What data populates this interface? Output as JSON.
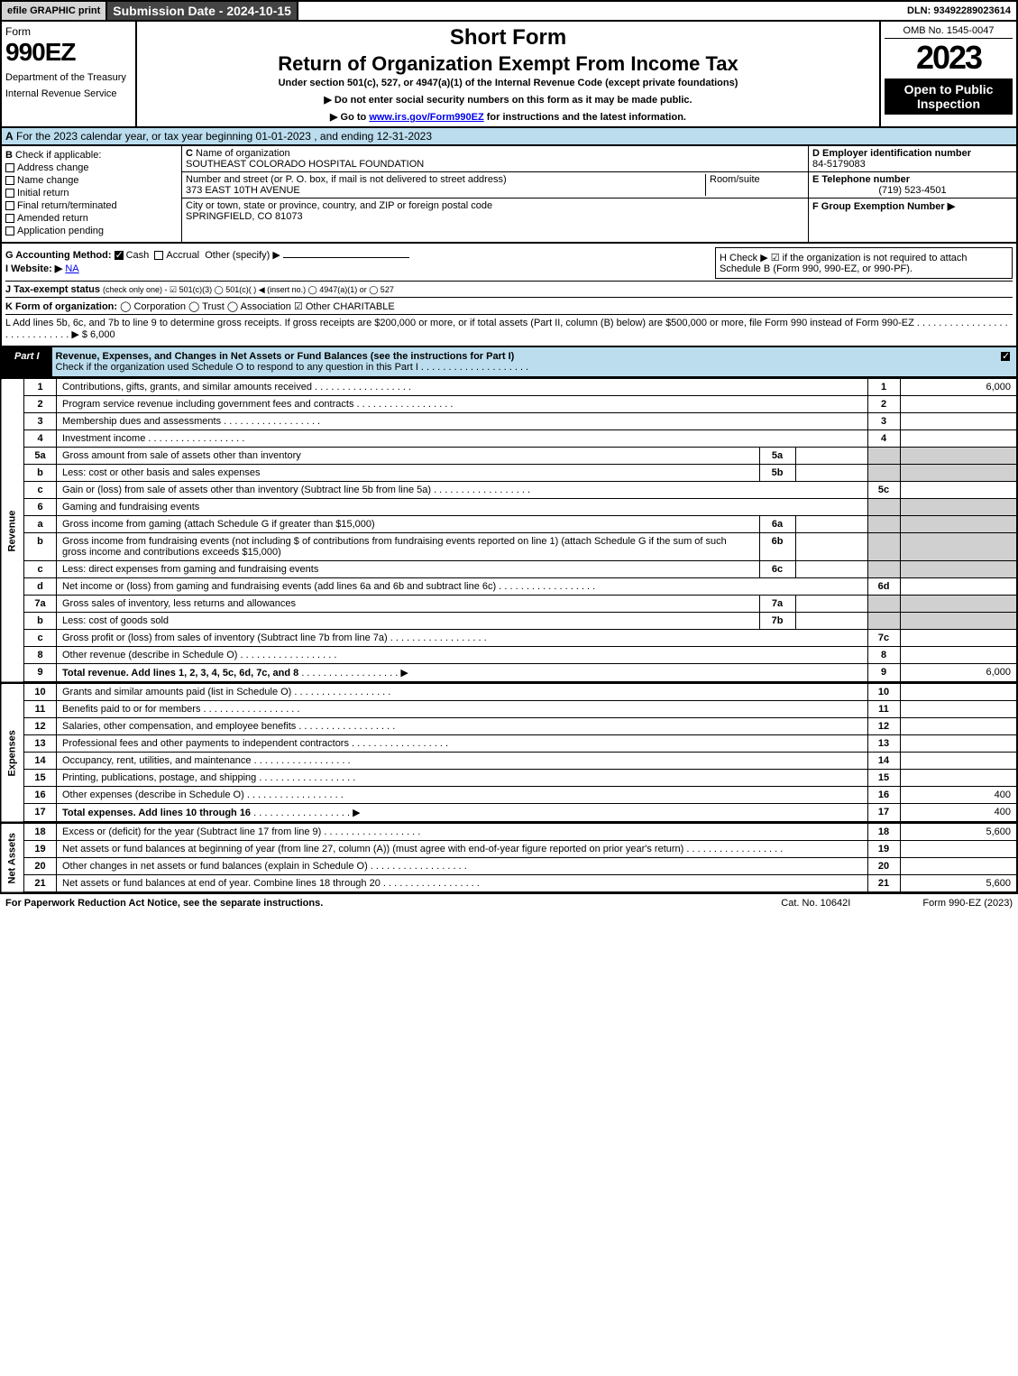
{
  "colors": {
    "accent": "#bde3f0",
    "shade": "#d0d0d0",
    "black": "#000000"
  },
  "top": {
    "efile": "efile GRAPHIC print",
    "sub_date_label": "Submission Date - 2024-10-15",
    "dln": "DLN: 93492289023614"
  },
  "header": {
    "form_word": "Form",
    "form_num": "990EZ",
    "dept": "Department of the Treasury",
    "irs": "Internal Revenue Service",
    "short": "Short Form",
    "title": "Return of Organization Exempt From Income Tax",
    "under": "Under section 501(c), 527, or 4947(a)(1) of the Internal Revenue Code (except private foundations)",
    "note1": "▶ Do not enter social security numbers on this form as it may be made public.",
    "note2_pre": "▶ Go to ",
    "note2_link": "www.irs.gov/Form990EZ",
    "note2_post": " for instructions and the latest information.",
    "omb": "OMB No. 1545-0047",
    "year": "2023",
    "open": "Open to Public Inspection"
  },
  "lineA": {
    "pre": "A",
    "text": "For the 2023 calendar year, or tax year beginning 01-01-2023 , and ending 12-31-2023"
  },
  "B": {
    "label": "B",
    "check_label": "Check if applicable:",
    "items": [
      "Address change",
      "Name change",
      "Initial return",
      "Final return/terminated",
      "Amended return",
      "Application pending"
    ]
  },
  "C": {
    "label": "C",
    "name_label": "Name of organization",
    "org_name": "SOUTHEAST COLORADO HOSPITAL FOUNDATION",
    "addr_label": "Number and street (or P. O. box, if mail is not delivered to street address)",
    "room_label": "Room/suite",
    "addr": "373 EAST 10TH AVENUE",
    "city_label": "City or town, state or province, country, and ZIP or foreign postal code",
    "city": "SPRINGFIELD, CO  81073"
  },
  "DEFright": {
    "D_label": "D Employer identification number",
    "D_val": "84-5179083",
    "E_label": "E Telephone number",
    "E_val": "(719) 523-4501",
    "F_label": "F Group Exemption Number ▶"
  },
  "GHIJ": {
    "G_label": "G Accounting Method:",
    "G_cash": "Cash",
    "G_accrual": "Accrual",
    "G_other": "Other (specify) ▶",
    "H_text": "H   Check ▶ ☑ if the organization is not required to attach Schedule B (Form 990, 990-EZ, or 990-PF).",
    "I_label": "I Website: ▶",
    "I_val": "NA",
    "J_label": "J Tax-exempt status",
    "J_text": "(check only one) - ☑ 501(c)(3)  ◯ 501(c)(  ) ◀ (insert no.)  ◯ 4947(a)(1) or  ◯ 527",
    "K_label": "K Form of organization:",
    "K_text": "◯ Corporation  ◯ Trust  ◯ Association  ☑ Other CHARITABLE",
    "L_text": "L Add lines 5b, 6c, and 7b to line 9 to determine gross receipts. If gross receipts are $200,000 or more, or if total assets (Part II, column (B) below) are $500,000 or more, file Form 990 instead of Form 990-EZ . . . . . . . . . . . . . . . . . . . . . . . . . . . . . ▶ $ 6,000"
  },
  "part1": {
    "label": "Part I",
    "title": "Revenue, Expenses, and Changes in Net Assets or Fund Balances (see the instructions for Part I)",
    "sub": "Check if the organization used Schedule O to respond to any question in this Part I . . . . . . . . . . . . . . . . . . . ."
  },
  "side": {
    "rev": "Revenue",
    "exp": "Expenses",
    "net": "Net Assets"
  },
  "lines": [
    {
      "ln": "1",
      "desc": "Contributions, gifts, grants, and similar amounts received",
      "num": "1",
      "val": "6,000"
    },
    {
      "ln": "2",
      "desc": "Program service revenue including government fees and contracts",
      "num": "2",
      "val": ""
    },
    {
      "ln": "3",
      "desc": "Membership dues and assessments",
      "num": "3",
      "val": ""
    },
    {
      "ln": "4",
      "desc": "Investment income",
      "num": "4",
      "val": ""
    },
    {
      "ln": "5a",
      "desc": "Gross amount from sale of assets other than inventory",
      "sub": "5a",
      "subval": ""
    },
    {
      "ln": "b",
      "desc": "Less: cost or other basis and sales expenses",
      "sub": "5b",
      "subval": ""
    },
    {
      "ln": "c",
      "desc": "Gain or (loss) from sale of assets other than inventory (Subtract line 5b from line 5a)",
      "num": "5c",
      "val": ""
    },
    {
      "ln": "6",
      "desc": "Gaming and fundraising events",
      "header": true
    },
    {
      "ln": "a",
      "desc": "Gross income from gaming (attach Schedule G if greater than $15,000)",
      "sub": "6a",
      "subval": ""
    },
    {
      "ln": "b",
      "desc": "Gross income from fundraising events (not including $            of contributions from fundraising events reported on line 1) (attach Schedule G if the sum of such gross income and contributions exceeds $15,000)",
      "sub": "6b",
      "subval": ""
    },
    {
      "ln": "c",
      "desc": "Less: direct expenses from gaming and fundraising events",
      "sub": "6c",
      "subval": ""
    },
    {
      "ln": "d",
      "desc": "Net income or (loss) from gaming and fundraising events (add lines 6a and 6b and subtract line 6c)",
      "num": "6d",
      "val": ""
    },
    {
      "ln": "7a",
      "desc": "Gross sales of inventory, less returns and allowances",
      "sub": "7a",
      "subval": ""
    },
    {
      "ln": "b",
      "desc": "Less: cost of goods sold",
      "sub": "7b",
      "subval": ""
    },
    {
      "ln": "c",
      "desc": "Gross profit or (loss) from sales of inventory (Subtract line 7b from line 7a)",
      "num": "7c",
      "val": ""
    },
    {
      "ln": "8",
      "desc": "Other revenue (describe in Schedule O)",
      "num": "8",
      "val": ""
    },
    {
      "ln": "9",
      "desc": "Total revenue. Add lines 1, 2, 3, 4, 5c, 6d, 7c, and 8",
      "num": "9",
      "val": "6,000",
      "bold": true,
      "arrow": true
    }
  ],
  "exp_lines": [
    {
      "ln": "10",
      "desc": "Grants and similar amounts paid (list in Schedule O)",
      "num": "10",
      "val": ""
    },
    {
      "ln": "11",
      "desc": "Benefits paid to or for members",
      "num": "11",
      "val": ""
    },
    {
      "ln": "12",
      "desc": "Salaries, other compensation, and employee benefits",
      "num": "12",
      "val": ""
    },
    {
      "ln": "13",
      "desc": "Professional fees and other payments to independent contractors",
      "num": "13",
      "val": ""
    },
    {
      "ln": "14",
      "desc": "Occupancy, rent, utilities, and maintenance",
      "num": "14",
      "val": ""
    },
    {
      "ln": "15",
      "desc": "Printing, publications, postage, and shipping",
      "num": "15",
      "val": ""
    },
    {
      "ln": "16",
      "desc": "Other expenses (describe in Schedule O)",
      "num": "16",
      "val": "400"
    },
    {
      "ln": "17",
      "desc": "Total expenses. Add lines 10 through 16",
      "num": "17",
      "val": "400",
      "bold": true,
      "arrow": true
    }
  ],
  "net_lines": [
    {
      "ln": "18",
      "desc": "Excess or (deficit) for the year (Subtract line 17 from line 9)",
      "num": "18",
      "val": "5,600"
    },
    {
      "ln": "19",
      "desc": "Net assets or fund balances at beginning of year (from line 27, column (A)) (must agree with end-of-year figure reported on prior year's return)",
      "num": "19",
      "val": ""
    },
    {
      "ln": "20",
      "desc": "Other changes in net assets or fund balances (explain in Schedule O)",
      "num": "20",
      "val": ""
    },
    {
      "ln": "21",
      "desc": "Net assets or fund balances at end of year. Combine lines 18 through 20",
      "num": "21",
      "val": "5,600"
    }
  ],
  "footer": {
    "l": "For Paperwork Reduction Act Notice, see the separate instructions.",
    "m": "Cat. No. 10642I",
    "r": "Form 990-EZ (2023)"
  }
}
